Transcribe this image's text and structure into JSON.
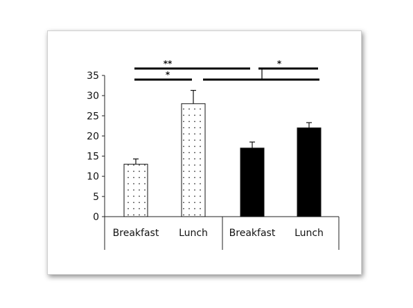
{
  "chart_data": {
    "type": "bar",
    "categories": [
      "Breakfast",
      "Lunch",
      "Breakfast",
      "Lunch"
    ],
    "values": [
      13,
      28,
      17,
      22
    ],
    "errors": [
      1.3,
      3.3,
      1.5,
      1.3
    ],
    "fills": [
      "dotted",
      "dotted",
      "#000000",
      "#000000"
    ],
    "ylim": [
      0,
      35
    ],
    "yticks": [
      "0",
      "5",
      "10",
      "15",
      "20",
      "25",
      "30",
      "35"
    ],
    "title": "",
    "xlabel": "",
    "ylabel": "",
    "significance": [
      {
        "label": "**",
        "from": 0,
        "to": 2
      },
      {
        "label": "*",
        "from": 0,
        "to": 1
      },
      {
        "label": "*",
        "from": 2,
        "to": 3
      },
      {
        "label": "",
        "from": 1,
        "to": 3
      }
    ]
  }
}
